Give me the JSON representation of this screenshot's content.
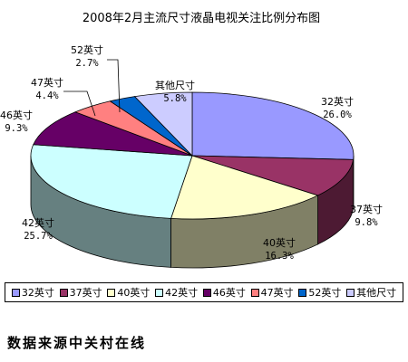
{
  "chart_data": {
    "type": "pie",
    "title": "2008年2月主流尺寸液晶电视关注比例分布图",
    "categories": [
      "32英寸",
      "37英寸",
      "40英寸",
      "42英寸",
      "46英寸",
      "47英寸",
      "52英寸",
      "其他尺寸"
    ],
    "values": [
      26.0,
      9.8,
      16.3,
      25.7,
      9.3,
      4.4,
      2.7,
      5.8
    ],
    "value_labels": [
      "26.0%",
      "9.8%",
      "16.3%",
      "25.7%",
      "9.3%",
      "4.4%",
      "2.7%",
      "5.8%"
    ],
    "colors": [
      "#9999ff",
      "#993366",
      "#ffffcc",
      "#ccffff",
      "#660066",
      "#ff8080",
      "#0066cc",
      "#ccccff"
    ],
    "legend_position": "bottom",
    "pie_3d": true
  },
  "source_note": "数据来源中关村在线"
}
